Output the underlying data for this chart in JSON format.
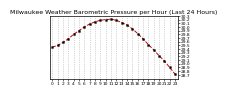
{
  "title": "Milwaukee Weather Barometric Pressure per Hour (Last 24 Hours)",
  "hours": [
    0,
    1,
    2,
    3,
    4,
    5,
    6,
    7,
    8,
    9,
    10,
    11,
    12,
    13,
    14,
    15,
    16,
    17,
    18,
    19,
    20,
    21,
    22,
    23
  ],
  "pressure": [
    29.45,
    29.5,
    29.58,
    29.68,
    29.8,
    29.9,
    30.0,
    30.08,
    30.14,
    30.18,
    30.2,
    30.21,
    30.18,
    30.12,
    30.05,
    29.95,
    29.82,
    29.68,
    29.52,
    29.38,
    29.22,
    29.08,
    28.9,
    28.72
  ],
  "line_color": "#cc0000",
  "marker_color": "#000000",
  "bg_color": "#ffffff",
  "grid_color": "#999999",
  "ylim_min": 28.6,
  "ylim_max": 30.3,
  "ytick_min": 28.7,
  "ytick_max": 30.3,
  "ytick_step": 0.1,
  "title_fontsize": 4.5,
  "tick_fontsize": 3.2,
  "right_panel_color": "#dddddd"
}
